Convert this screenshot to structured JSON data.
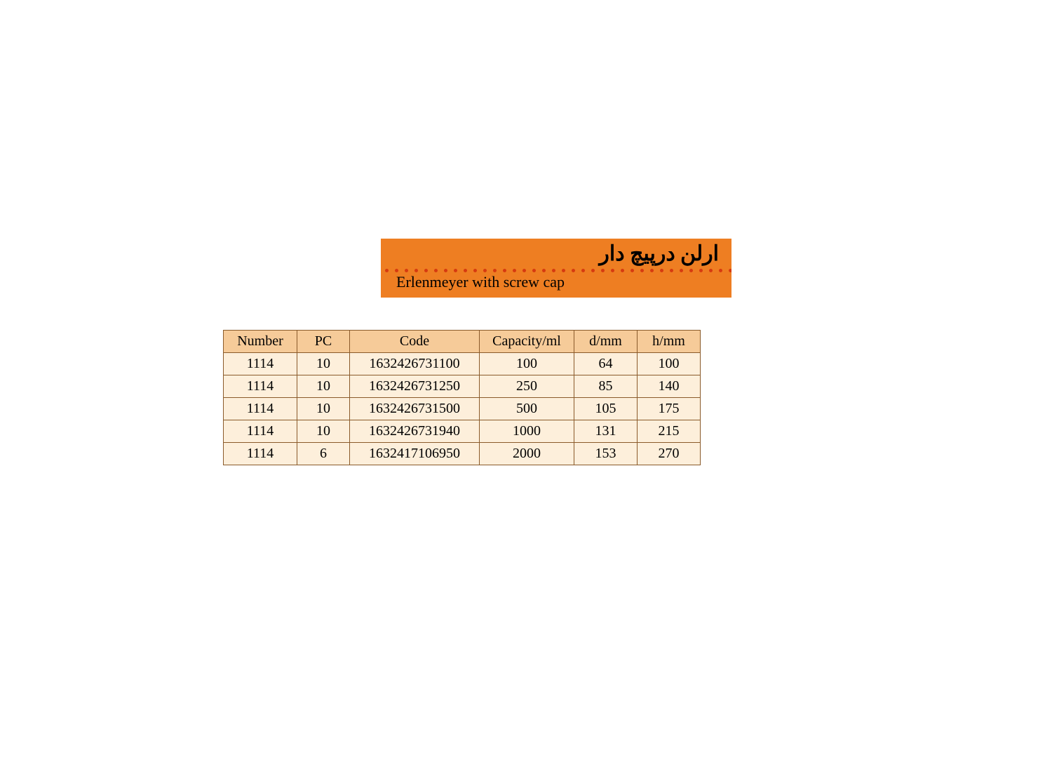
{
  "colors": {
    "banner_bg": "#ee7e22",
    "banner_text": "#000000",
    "dot": "#d63a10",
    "header_bg": "#f6cb99",
    "cell_bg": "#fdefdb",
    "border": "#8a5a2a",
    "text": "#000000",
    "page_bg": "#ffffff"
  },
  "title": {
    "farsi": "ارلن درپیچ دار",
    "english": "Erlenmeyer  with screw cap"
  },
  "table": {
    "columns": [
      "Number",
      "PC",
      "Code",
      "Capacity/ml",
      "d/mm",
      "h/mm"
    ],
    "col_classes": [
      "col-number",
      "col-pc",
      "col-code",
      "col-capacity",
      "col-dmm",
      "col-hmm"
    ],
    "rows": [
      [
        "1114",
        "10",
        "1632426731100",
        "100",
        "64",
        "100"
      ],
      [
        "1114",
        "10",
        "1632426731250",
        "250",
        "85",
        "140"
      ],
      [
        "1114",
        "10",
        "1632426731500",
        "500",
        "105",
        "175"
      ],
      [
        "1114",
        "10",
        "1632426731940",
        "1000",
        "131",
        "215"
      ],
      [
        "1114",
        "6",
        "1632417106950",
        "2000",
        "153",
        "270"
      ]
    ]
  },
  "layout": {
    "banner_dot_count": 36
  }
}
